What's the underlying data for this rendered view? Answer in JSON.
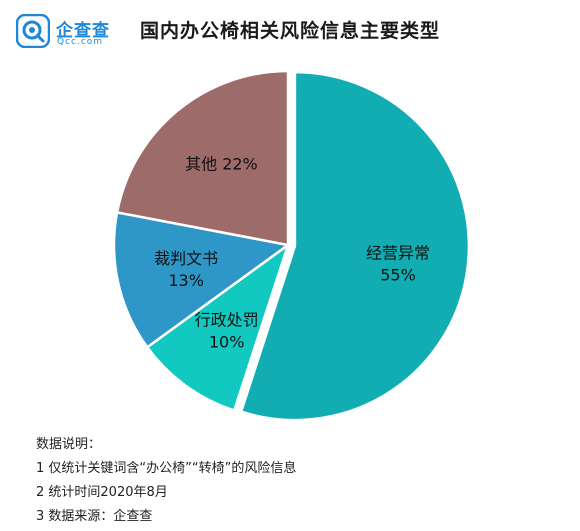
{
  "brand": {
    "name": "企查查",
    "domain": "Qcc.com",
    "color": "#1e88d8"
  },
  "chart_data": {
    "type": "pie",
    "title": "国内办公椅相关风险信息主要类型",
    "slices": [
      {
        "label": "经营异常",
        "value": 55,
        "value_label": "55%",
        "color": "#11adb3",
        "exploded": true
      },
      {
        "label": "行政处罚",
        "value": 10,
        "value_label": "10%",
        "color": "#12c9c2",
        "exploded": false
      },
      {
        "label": "裁判文书",
        "value": 13,
        "value_label": "13%",
        "color": "#2f97c8",
        "exploded": false
      },
      {
        "label": "其他",
        "value": 22,
        "value_label": "22%",
        "color": "#9e6b6b",
        "exploded": false
      }
    ]
  },
  "notes": {
    "heading": "数据说明：",
    "items": [
      "1 仅统计关键词含“办公椅”“转椅”的风险信息",
      "2 统计时间2020年8月",
      "3 数据来源：企查查"
    ]
  }
}
